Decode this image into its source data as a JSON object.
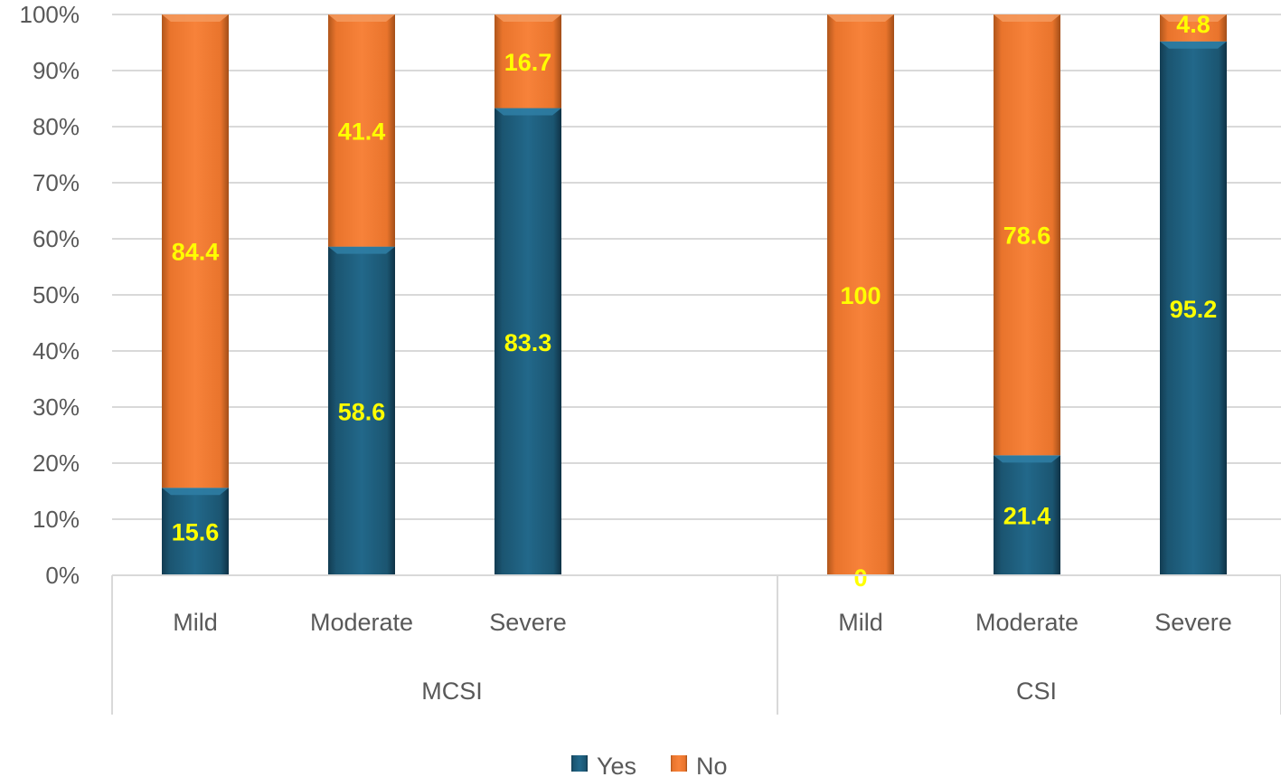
{
  "chart_data": {
    "type": "bar",
    "stacked": true,
    "percent": true,
    "groups": [
      {
        "name": "MCSI",
        "categories": [
          "Mild",
          "Moderate",
          "Severe"
        ]
      },
      {
        "name": "CSI",
        "categories": [
          "Mild",
          "Moderate",
          "Severe"
        ]
      }
    ],
    "series": [
      {
        "name": "Yes",
        "color": "#1f5f7f",
        "values": [
          15.6,
          58.6,
          83.3,
          0,
          21.4,
          95.2
        ]
      },
      {
        "name": "No",
        "color": "#f07d34",
        "values": [
          84.4,
          41.4,
          16.7,
          100,
          78.6,
          4.8
        ]
      }
    ],
    "data_labels": {
      "Yes": [
        "15.6",
        "58.6",
        "83.3",
        "0",
        "21.4",
        "95.2"
      ],
      "No": [
        "84.4",
        "41.4",
        "16.7",
        "100",
        "78.6",
        "4.8"
      ]
    },
    "ylim": [
      0,
      100
    ],
    "yticks": [
      "0%",
      "10%",
      "20%",
      "30%",
      "40%",
      "50%",
      "60%",
      "70%",
      "80%",
      "90%",
      "100%"
    ],
    "grid": true,
    "legend_position": "bottom",
    "data_label_color": "#ffff00"
  }
}
